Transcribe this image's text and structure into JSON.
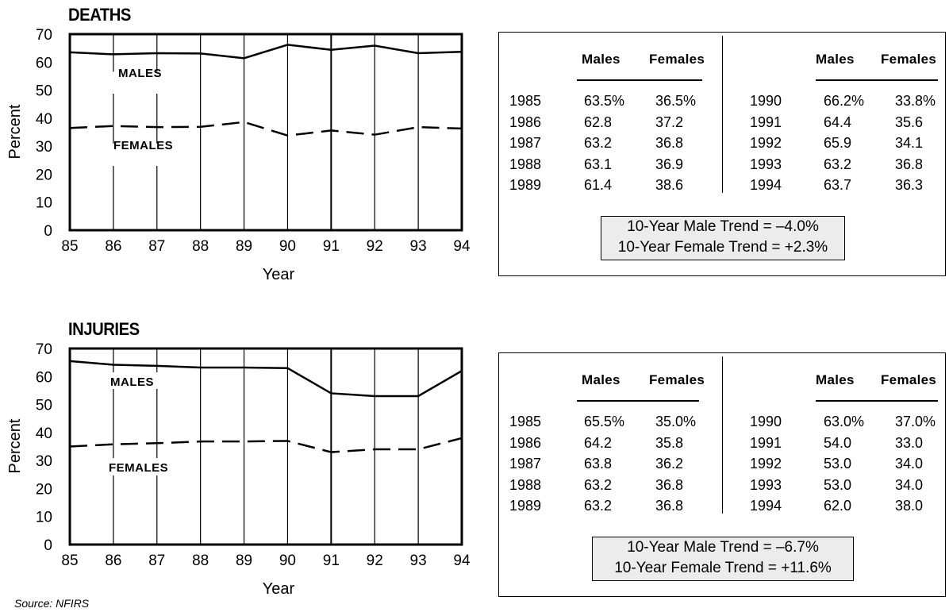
{
  "chart_data": [
    {
      "type": "line",
      "title": "DEATHS",
      "xlabel": "Year",
      "ylabel": "Percent",
      "x": [
        "85",
        "86",
        "87",
        "88",
        "89",
        "90",
        "91",
        "92",
        "93",
        "94"
      ],
      "ylim": [
        0,
        70
      ],
      "yticks": [
        "0",
        "10",
        "20",
        "30",
        "40",
        "50",
        "60",
        "70"
      ],
      "grid": "vertical",
      "series": [
        {
          "name": "MALES",
          "values": [
            63.5,
            62.8,
            63.2,
            63.1,
            61.4,
            66.2,
            64.4,
            65.9,
            63.2,
            63.7
          ],
          "style": "solid"
        },
        {
          "name": "FEMALES",
          "values": [
            36.5,
            37.2,
            36.8,
            36.9,
            38.6,
            33.8,
            35.6,
            34.1,
            36.8,
            36.3
          ],
          "style": "dashed"
        }
      ]
    },
    {
      "type": "line",
      "title": "INJURIES",
      "xlabel": "Year",
      "ylabel": "Percent",
      "x": [
        "85",
        "86",
        "87",
        "88",
        "89",
        "90",
        "91",
        "92",
        "93",
        "94"
      ],
      "ylim": [
        0,
        70
      ],
      "yticks": [
        "0",
        "10",
        "20",
        "30",
        "40",
        "50",
        "60",
        "70"
      ],
      "grid": "vertical",
      "series": [
        {
          "name": "MALES",
          "values": [
            65.5,
            64.2,
            63.8,
            63.2,
            63.2,
            63.0,
            54.0,
            53.0,
            53.0,
            62.0
          ],
          "style": "solid"
        },
        {
          "name": "FEMALES",
          "values": [
            35.0,
            35.8,
            36.2,
            36.8,
            36.8,
            37.0,
            33.0,
            34.0,
            34.0,
            38.0
          ],
          "style": "dashed"
        }
      ]
    }
  ],
  "tables": {
    "deaths": {
      "headers": {
        "males": "Males",
        "females": "Females"
      },
      "left_rows": [
        [
          "1985",
          "63.5%",
          "36.5%"
        ],
        [
          "1986",
          "62.8",
          "37.2"
        ],
        [
          "1987",
          "63.2",
          "36.8"
        ],
        [
          "1988",
          "63.1",
          "36.9"
        ],
        [
          "1989",
          "61.4",
          "38.6"
        ]
      ],
      "right_rows": [
        [
          "1990",
          "66.2%",
          "33.8%"
        ],
        [
          "1991",
          "64.4",
          "35.6"
        ],
        [
          "1992",
          "65.9",
          "34.1"
        ],
        [
          "1993",
          "63.2",
          "36.8"
        ],
        [
          "1994",
          "63.7",
          "36.3"
        ]
      ],
      "trend_male": "10-Year Male Trend = –4.0%",
      "trend_female": "10-Year Female Trend = +2.3%"
    },
    "injuries": {
      "headers": {
        "males": "Males",
        "females": "Females"
      },
      "left_rows": [
        [
          "1985",
          "65.5%",
          "35.0%"
        ],
        [
          "1986",
          "64.2",
          "35.8"
        ],
        [
          "1987",
          "63.8",
          "36.2"
        ],
        [
          "1988",
          "63.2",
          "36.8"
        ],
        [
          "1989",
          "63.2",
          "36.8"
        ]
      ],
      "right_rows": [
        [
          "1990",
          "63.0%",
          "37.0%"
        ],
        [
          "1991",
          "54.0",
          "33.0"
        ],
        [
          "1992",
          "53.0",
          "34.0"
        ],
        [
          "1993",
          "53.0",
          "34.0"
        ],
        [
          "1994",
          "62.0",
          "38.0"
        ]
      ],
      "trend_male": "10-Year Male Trend = –6.7%",
      "trend_female": "10-Year Female Trend = +11.6%"
    }
  },
  "source": "Source:  NFIRS"
}
